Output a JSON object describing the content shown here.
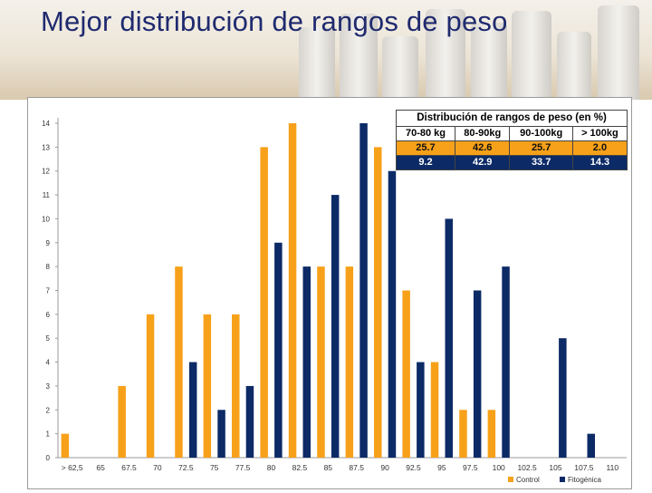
{
  "slide": {
    "title": "Mejor distribución de rangos de peso"
  },
  "colors": {
    "control": "#f7a11a",
    "fitogenico": "#0c2a66",
    "title": "#1f2a6e"
  },
  "table": {
    "title": "Distribución de rangos de peso (en %)",
    "headers": [
      "70-80 kg",
      "80-90kg",
      "90-100kg",
      "> 100kg"
    ],
    "rows": [
      {
        "series": "Control",
        "values": [
          "25.7",
          "42.6",
          "25.7",
          "2.0"
        ]
      },
      {
        "series": "Fitogénico",
        "values": [
          "9.2",
          "42.9",
          "33.7",
          "14.3"
        ]
      }
    ]
  },
  "chart_data": {
    "type": "bar",
    "categories": [
      "> 62,5",
      "65",
      "67.5",
      "70",
      "72.5",
      "75",
      "77.5",
      "80",
      "82.5",
      "85",
      "87.5",
      "90",
      "92.5",
      "95",
      "97.5",
      "100",
      "102.5",
      "105",
      "107.5",
      "110"
    ],
    "series": [
      {
        "name": "Control",
        "values": [
          1,
          0,
          3,
          6,
          8,
          6,
          6,
          13,
          14,
          8,
          8,
          13,
          7,
          4,
          2,
          2,
          0,
          0,
          0,
          0
        ]
      },
      {
        "name": "Fitogénica",
        "values": [
          0,
          0,
          0,
          0,
          4,
          2,
          3,
          9,
          8,
          11,
          14,
          12,
          4,
          10,
          7,
          8,
          0,
          5,
          1,
          0
        ]
      }
    ],
    "ylim": [
      0,
      14
    ],
    "yticks": [
      "0",
      "1",
      "2",
      "3",
      "4",
      "5",
      "6",
      "7",
      "8",
      "9",
      "10",
      "11",
      "12",
      "13",
      "14"
    ],
    "legend": [
      "Control",
      "Fitogénica"
    ],
    "legend_position": "bottom-right",
    "grid": false
  }
}
